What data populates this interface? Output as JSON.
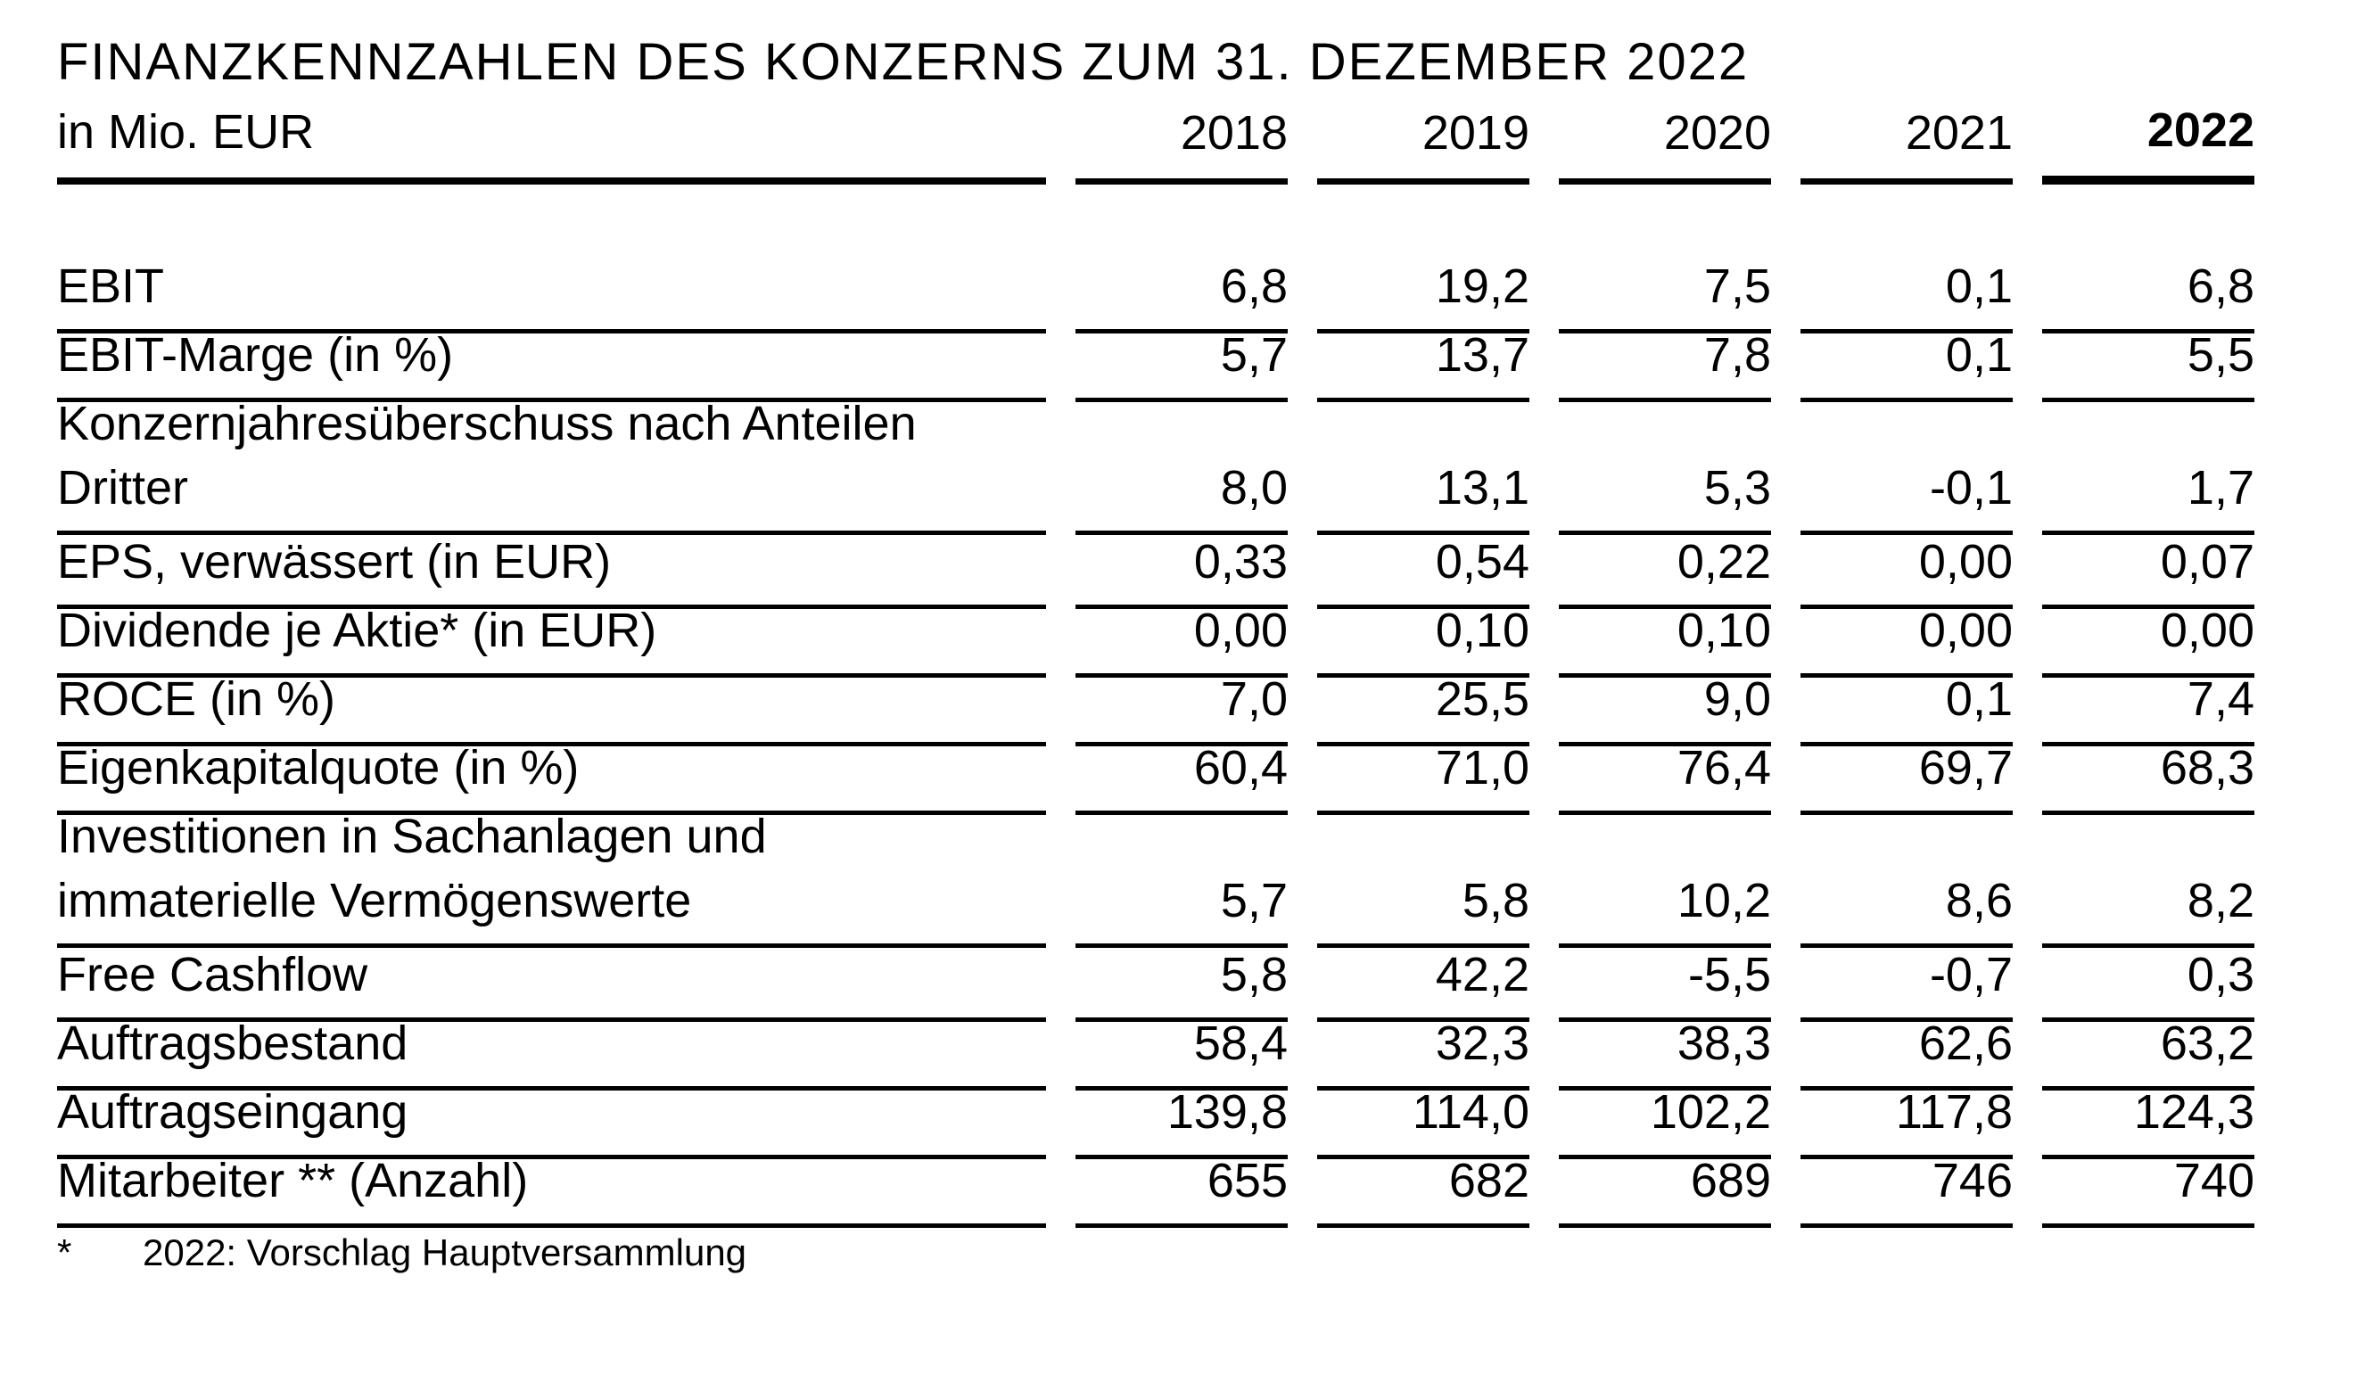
{
  "page": {
    "title": "FINANZKENNZAHLEN DES KONZERNS ZUM 31. DEZEMBER 2022"
  },
  "table": {
    "unit_label": "in Mio. EUR",
    "years": [
      "2018",
      "2019",
      "2020",
      "2021",
      "2022"
    ],
    "highlight_year": "2022",
    "rows": [
      {
        "label_lines": [
          "EBIT"
        ],
        "values": [
          "6,8",
          "19,2",
          "7,5",
          "0,1",
          "6,8"
        ]
      },
      {
        "label_lines": [
          "EBIT-Marge (in %)"
        ],
        "values": [
          "5,7",
          "13,7",
          "7,8",
          "0,1",
          "5,5"
        ]
      },
      {
        "label_lines": [
          "Konzernjahresüberschuss nach Anteilen",
          "Dritter"
        ],
        "values": [
          "8,0",
          "13,1",
          "5,3",
          "-0,1",
          "1,7"
        ]
      },
      {
        "label_lines": [
          "EPS, verwässert (in EUR)"
        ],
        "values": [
          "0,33",
          "0,54",
          "0,22",
          "0,00",
          "0,07"
        ]
      },
      {
        "label_lines": [
          "Dividende je Aktie* (in EUR)"
        ],
        "values": [
          "0,00",
          "0,10",
          "0,10",
          "0,00",
          "0,00"
        ]
      },
      {
        "label_lines": [
          "ROCE (in %)"
        ],
        "values": [
          "7,0",
          "25,5",
          "9,0",
          "0,1",
          "7,4"
        ]
      },
      {
        "label_lines": [
          "Eigenkapitalquote (in %)"
        ],
        "values": [
          "60,4",
          "71,0",
          "76,4",
          "69,7",
          "68,3"
        ]
      },
      {
        "label_lines": [
          "Investitionen in Sachanlagen und",
          "immaterielle Vermögenswerte"
        ],
        "values": [
          "5,7",
          "5,8",
          "10,2",
          "8,6",
          "8,2"
        ]
      },
      {
        "label_lines": [
          "Free Cashflow"
        ],
        "values": [
          "5,8",
          "42,2",
          "-5,5",
          "-0,7",
          "0,3"
        ]
      },
      {
        "label_lines": [
          "Auftragsbestand"
        ],
        "values": [
          "58,4",
          "32,3",
          "38,3",
          "62,6",
          "63,2"
        ]
      },
      {
        "label_lines": [
          "Auftragseingang"
        ],
        "values": [
          "139,8",
          "114,0",
          "102,2",
          "117,8",
          "124,3"
        ]
      },
      {
        "label_lines": [
          "Mitarbeiter ** (Anzahl)"
        ],
        "values": [
          "655",
          "682",
          "689",
          "746",
          "740"
        ]
      }
    ],
    "footnote": {
      "marker": "*",
      "text": "2022: Vorschlag Hauptversammlung"
    }
  },
  "colors": {
    "background": "#ffffff",
    "text": "#000000",
    "rule": "#000000"
  }
}
